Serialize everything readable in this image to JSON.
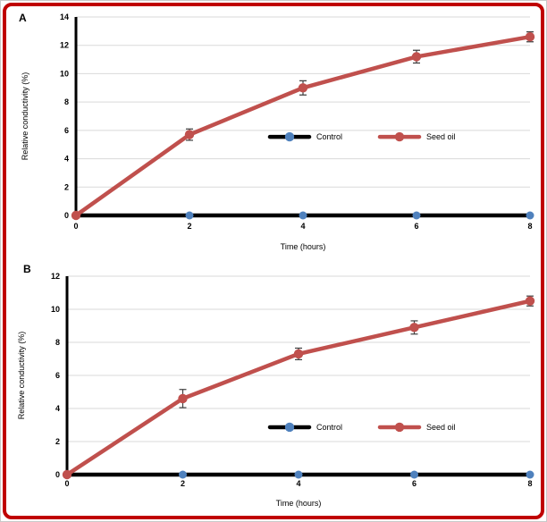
{
  "figure": {
    "border_color": "#C00000",
    "background": "#ffffff",
    "panel_labels": [
      "A",
      "B"
    ]
  },
  "colors": {
    "seed_oil_line": "#C0504D",
    "control_line": "#000000",
    "control_marker": "#4F81BD",
    "gridline": "#D9D9D9",
    "error_bar": "#3F3F3F",
    "tick_text": "#000000"
  },
  "chart_data": [
    {
      "panel": "A",
      "type": "line",
      "x": [
        0,
        2,
        4,
        6,
        8
      ],
      "xticks": [
        "0",
        "2",
        "4",
        "6",
        "8"
      ],
      "xlabel": "Time (hours)",
      "ylabel": "Relative conductivity (%)",
      "ylim": [
        0,
        14
      ],
      "ytick_step": 2,
      "grid": true,
      "legend_position": "inside-plot-center",
      "series": [
        {
          "name": "Control",
          "line_color": "#000000",
          "marker_color": "#4F81BD",
          "values": [
            0,
            0,
            0,
            0,
            0
          ],
          "errors": [
            0,
            0,
            0,
            0,
            0
          ]
        },
        {
          "name": "Seed oil",
          "line_color": "#C0504D",
          "marker_color": "#C0504D",
          "values": [
            0,
            5.7,
            9.0,
            11.2,
            12.6
          ],
          "errors": [
            0,
            0.4,
            0.5,
            0.45,
            0.35
          ]
        }
      ]
    },
    {
      "panel": "B",
      "type": "line",
      "x": [
        0,
        2,
        4,
        6,
        8
      ],
      "xticks": [
        "0",
        "2",
        "4",
        "6",
        "8"
      ],
      "xlabel": "Time (hours)",
      "ylabel": "Relative conductivity (%)",
      "ylim": [
        0,
        12
      ],
      "ytick_step": 2,
      "grid": true,
      "legend_position": "inside-plot-center",
      "series": [
        {
          "name": "Control",
          "line_color": "#000000",
          "marker_color": "#4F81BD",
          "values": [
            0,
            0,
            0,
            0,
            0
          ],
          "errors": [
            0,
            0,
            0,
            0,
            0
          ]
        },
        {
          "name": "Seed oil",
          "line_color": "#C0504D",
          "marker_color": "#C0504D",
          "values": [
            0,
            4.6,
            7.3,
            8.9,
            10.5
          ],
          "errors": [
            0,
            0.55,
            0.35,
            0.4,
            0.3
          ]
        }
      ]
    }
  ]
}
